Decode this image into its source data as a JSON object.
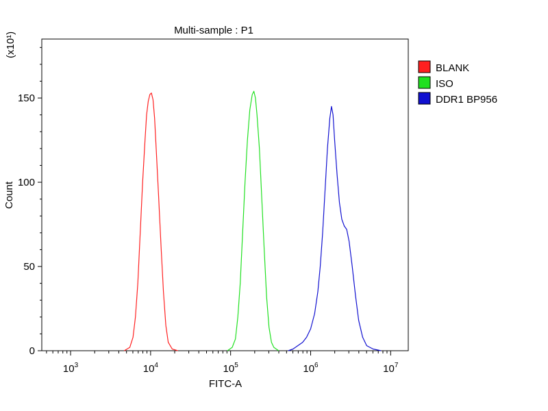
{
  "chart_data": {
    "type": "line",
    "title": "Multi-sample : P1",
    "xlabel": "FITC-A",
    "ylabel": "Count",
    "y_multiplier": "(x10¹)",
    "x_scale": "log",
    "x_ticks": [
      {
        "base": "10",
        "exp": "3"
      },
      {
        "base": "10",
        "exp": "4"
      },
      {
        "base": "10",
        "exp": "5"
      },
      {
        "base": "10",
        "exp": "6"
      },
      {
        "base": "10",
        "exp": "7"
      }
    ],
    "xlim_log10": [
      2.64,
      7.22
    ],
    "ylim": [
      0,
      185
    ],
    "y_ticks": [
      "0",
      "50",
      "100",
      "150"
    ],
    "legend": {
      "position": "right"
    },
    "series": [
      {
        "name": "BLANK",
        "color": "#ff2020",
        "points": [
          [
            3.67,
            0
          ],
          [
            3.74,
            2
          ],
          [
            3.78,
            8
          ],
          [
            3.81,
            20
          ],
          [
            3.84,
            40
          ],
          [
            3.87,
            70
          ],
          [
            3.9,
            100
          ],
          [
            3.93,
            125
          ],
          [
            3.95,
            140
          ],
          [
            3.97,
            148
          ],
          [
            3.99,
            152
          ],
          [
            4.01,
            153
          ],
          [
            4.03,
            149
          ],
          [
            4.05,
            138
          ],
          [
            4.07,
            120
          ],
          [
            4.1,
            92
          ],
          [
            4.13,
            62
          ],
          [
            4.16,
            35
          ],
          [
            4.19,
            15
          ],
          [
            4.22,
            5
          ],
          [
            4.27,
            1
          ],
          [
            4.34,
            0
          ]
        ]
      },
      {
        "name": "ISO",
        "color": "#20e020",
        "points": [
          [
            4.96,
            0
          ],
          [
            5.02,
            2
          ],
          [
            5.06,
            7
          ],
          [
            5.09,
            20
          ],
          [
            5.12,
            40
          ],
          [
            5.15,
            70
          ],
          [
            5.18,
            100
          ],
          [
            5.21,
            125
          ],
          [
            5.24,
            143
          ],
          [
            5.27,
            152
          ],
          [
            5.29,
            154
          ],
          [
            5.31,
            150
          ],
          [
            5.33,
            140
          ],
          [
            5.36,
            120
          ],
          [
            5.39,
            90
          ],
          [
            5.42,
            60
          ],
          [
            5.45,
            32
          ],
          [
            5.48,
            14
          ],
          [
            5.51,
            5
          ],
          [
            5.54,
            2
          ],
          [
            5.6,
            0
          ]
        ]
      },
      {
        "name": "DDR1 BP956",
        "color": "#1010d0",
        "points": [
          [
            5.72,
            0
          ],
          [
            5.78,
            1
          ],
          [
            5.84,
            3
          ],
          [
            5.9,
            5
          ],
          [
            5.95,
            8
          ],
          [
            6.0,
            13
          ],
          [
            6.05,
            22
          ],
          [
            6.09,
            35
          ],
          [
            6.12,
            50
          ],
          [
            6.15,
            70
          ],
          [
            6.18,
            95
          ],
          [
            6.21,
            120
          ],
          [
            6.24,
            138
          ],
          [
            6.26,
            145
          ],
          [
            6.28,
            140
          ],
          [
            6.3,
            125
          ],
          [
            6.33,
            105
          ],
          [
            6.36,
            88
          ],
          [
            6.39,
            78
          ],
          [
            6.42,
            74
          ],
          [
            6.45,
            72
          ],
          [
            6.48,
            65
          ],
          [
            6.52,
            50
          ],
          [
            6.56,
            33
          ],
          [
            6.6,
            18
          ],
          [
            6.65,
            8
          ],
          [
            6.7,
            3
          ],
          [
            6.78,
            1
          ],
          [
            6.88,
            0
          ]
        ]
      }
    ]
  }
}
